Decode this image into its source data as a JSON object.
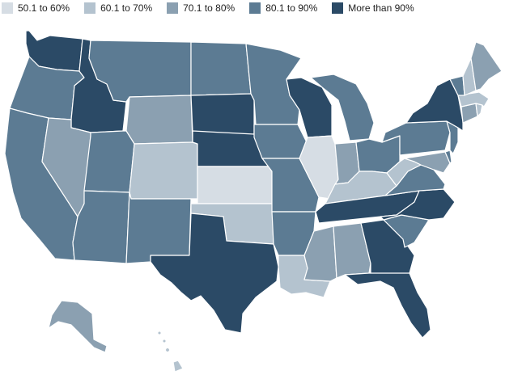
{
  "legend": [
    {
      "label": "50.1 to 60%",
      "color": "#d6dde4"
    },
    {
      "label": "60.1 to 70%",
      "color": "#b4c3cf"
    },
    {
      "label": "70.1 to 80%",
      "color": "#8ba0b1"
    },
    {
      "label": "80.1 to 90%",
      "color": "#5c7b93"
    },
    {
      "label": "More than 90%",
      "color": "#2b4a66"
    }
  ],
  "states": {
    "WA": 4,
    "OR": 3,
    "CA": 3,
    "ID": 4,
    "NV": 2,
    "UT": 3,
    "AZ": 3,
    "MT": 3,
    "WY": 2,
    "CO": 1,
    "NM": 3,
    "ND": 3,
    "SD": 4,
    "NE": 4,
    "KS": 0,
    "OK": 1,
    "TX": 4,
    "MN": 3,
    "IA": 3,
    "MO": 3,
    "AR": 3,
    "LA": 1,
    "WI": 4,
    "IL": 0,
    "MI": 3,
    "IN": 2,
    "OH": 3,
    "KY": 1,
    "TN": 4,
    "MS": 2,
    "AL": 2,
    "GA": 4,
    "FL": 4,
    "SC": 3,
    "NC": 4,
    "VA": 3,
    "WV": 1,
    "PA": 3,
    "NY": 4,
    "VT": 3,
    "NH": 1,
    "ME": 2,
    "MA": 1,
    "CT": 2,
    "RI": 1,
    "NJ": 3,
    "DE": 3,
    "MD": 2,
    "AK": 2,
    "HI": 1
  }
}
